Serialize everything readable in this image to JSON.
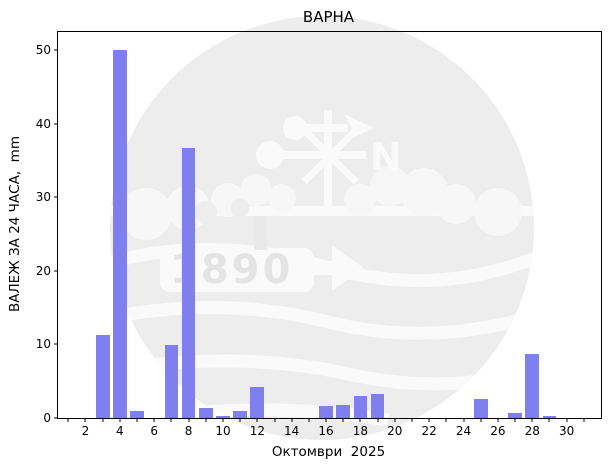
{
  "chart_data": {
    "type": "bar",
    "title": "ВАРНА",
    "xlabel": "Октомври  2025",
    "ylabel": "ВАЛЕЖ ЗА 24 ЧАСА,  mm",
    "days": [
      1,
      2,
      3,
      4,
      5,
      6,
      7,
      8,
      9,
      10,
      11,
      12,
      13,
      14,
      15,
      16,
      17,
      18,
      19,
      20,
      21,
      22,
      23,
      24,
      25,
      26,
      27,
      28,
      29,
      30,
      31
    ],
    "values": [
      0,
      0,
      11.3,
      50.0,
      1.0,
      0,
      9.9,
      36.7,
      1.3,
      0.3,
      0.9,
      4.2,
      0,
      0,
      0,
      1.6,
      1.8,
      3.0,
      3.3,
      0,
      0,
      0,
      0,
      0,
      2.6,
      0,
      0.7,
      8.7,
      0.3,
      0,
      0
    ],
    "bar_color": "#7f7ff0",
    "bar_width_days": 0.8,
    "xlim": [
      0.4,
      32.0
    ],
    "ylim": [
      0,
      52.5
    ],
    "xticks": {
      "minor_from": 1,
      "minor_to": 31,
      "labels": [
        2,
        4,
        6,
        8,
        10,
        12,
        14,
        16,
        18,
        20,
        22,
        24,
        26,
        28,
        30
      ]
    },
    "yticks": [
      0,
      10,
      20,
      30,
      40,
      50
    ],
    "grid": false,
    "legend": null,
    "watermark": {
      "year": "1890",
      "compass": "N",
      "circle_color": "#ededed",
      "detail_color": "#fafafa",
      "year_color": "#e4e4e4"
    }
  }
}
